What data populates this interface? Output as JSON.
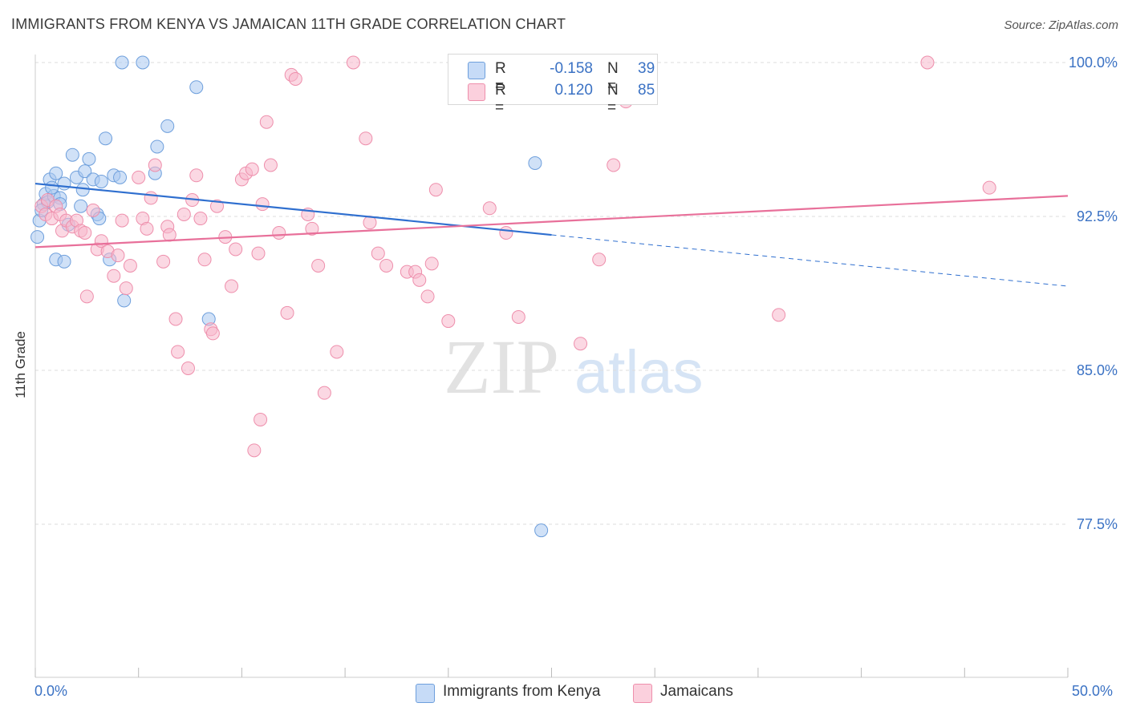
{
  "header": {
    "title": "IMMIGRANTS FROM KENYA VS JAMAICAN 11TH GRADE CORRELATION CHART",
    "source": "Source: ZipAtlas.com"
  },
  "watermark": {
    "zip": "ZIP",
    "atlas": "atlas"
  },
  "stats_legend": [
    {
      "r_label": "R =",
      "r_value": "-0.158",
      "n_label": "N =",
      "n_value": "39",
      "color": "#a9c8f0"
    },
    {
      "r_label": "R =",
      "r_value": "0.120",
      "n_label": "N =",
      "n_value": "85",
      "color": "#f7b8cc"
    }
  ],
  "bottom_legend": [
    {
      "label": "Immigrants from Kenya",
      "color": "#a9c8f0"
    },
    {
      "label": "Jamaicans",
      "color": "#f7b8cc"
    }
  ],
  "x_tick_labels": {
    "left": "0.0%",
    "right": "50.0%"
  },
  "chart_data": {
    "type": "scatter",
    "title": "IMMIGRANTS FROM KENYA VS JAMAICAN 11TH GRADE CORRELATION CHART",
    "xlabel": "",
    "ylabel": "11th Grade",
    "xlim": [
      0,
      50
    ],
    "ylim": [
      70.5,
      101.5
    ],
    "y_ticks": [
      {
        "value": 100.0,
        "label": "100.0%"
      },
      {
        "value": 92.5,
        "label": "92.5%"
      },
      {
        "value": 85.0,
        "label": "85.0%"
      },
      {
        "value": 77.5,
        "label": "77.5%"
      }
    ],
    "grid": true,
    "series": [
      {
        "name": "Immigrants from Kenya",
        "color": "#a9c8f0",
        "stroke": "#6e9fdc",
        "trend_color": "#2f6fcf",
        "trend": {
          "x0": 0,
          "y0": 94.1,
          "x1": 25,
          "y1": 91.6,
          "dash_to_x": 50,
          "dash_to_y": 89.1
        },
        "points": [
          [
            0.2,
            92.3
          ],
          [
            0.4,
            93.1
          ],
          [
            0.5,
            93.6
          ],
          [
            0.6,
            93.2
          ],
          [
            0.7,
            94.3
          ],
          [
            0.9,
            93.5
          ],
          [
            1.0,
            94.6
          ],
          [
            1.2,
            93.4
          ],
          [
            1.4,
            94.1
          ],
          [
            1.6,
            92.1
          ],
          [
            1.8,
            95.5
          ],
          [
            2.0,
            94.4
          ],
          [
            2.2,
            93.0
          ],
          [
            2.3,
            93.8
          ],
          [
            2.4,
            94.7
          ],
          [
            2.6,
            95.3
          ],
          [
            2.8,
            94.3
          ],
          [
            3.0,
            92.6
          ],
          [
            3.1,
            92.4
          ],
          [
            3.2,
            94.2
          ],
          [
            3.4,
            96.3
          ],
          [
            3.6,
            90.4
          ],
          [
            3.8,
            94.5
          ],
          [
            4.1,
            94.4
          ],
          [
            4.2,
            100.0
          ],
          [
            4.3,
            88.4
          ],
          [
            5.2,
            100.0
          ],
          [
            5.8,
            94.6
          ],
          [
            5.9,
            95.9
          ],
          [
            6.4,
            96.9
          ],
          [
            7.8,
            98.8
          ],
          [
            8.4,
            87.5
          ],
          [
            1.0,
            90.4
          ],
          [
            1.4,
            90.3
          ],
          [
            0.3,
            92.8
          ],
          [
            0.8,
            93.9
          ],
          [
            1.2,
            93.1
          ],
          [
            0.1,
            91.5
          ],
          [
            24.2,
            95.1
          ],
          [
            24.5,
            77.2
          ]
        ]
      },
      {
        "name": "Jamaicans",
        "color": "#f7b8cc",
        "stroke": "#ee8fac",
        "trend_color": "#e8709a",
        "trend": {
          "x0": 0,
          "y0": 91.0,
          "x1": 50,
          "y1": 93.5
        },
        "points": [
          [
            0.3,
            93.0
          ],
          [
            0.5,
            92.6
          ],
          [
            0.6,
            93.3
          ],
          [
            0.8,
            92.4
          ],
          [
            1.0,
            93.0
          ],
          [
            1.2,
            92.6
          ],
          [
            1.3,
            91.8
          ],
          [
            1.5,
            92.3
          ],
          [
            1.8,
            92.0
          ],
          [
            2.0,
            92.3
          ],
          [
            2.2,
            91.8
          ],
          [
            2.4,
            91.7
          ],
          [
            2.5,
            88.6
          ],
          [
            2.8,
            92.8
          ],
          [
            3.0,
            90.9
          ],
          [
            3.2,
            91.3
          ],
          [
            3.5,
            90.8
          ],
          [
            3.8,
            89.6
          ],
          [
            4.0,
            90.6
          ],
          [
            4.2,
            92.3
          ],
          [
            4.4,
            89.0
          ],
          [
            4.6,
            90.1
          ],
          [
            5.0,
            94.4
          ],
          [
            5.2,
            92.4
          ],
          [
            5.4,
            91.9
          ],
          [
            5.6,
            93.4
          ],
          [
            5.8,
            95.0
          ],
          [
            6.2,
            90.3
          ],
          [
            6.4,
            92.0
          ],
          [
            6.5,
            91.6
          ],
          [
            6.8,
            87.5
          ],
          [
            6.9,
            85.9
          ],
          [
            7.2,
            92.6
          ],
          [
            7.4,
            85.1
          ],
          [
            7.6,
            93.3
          ],
          [
            7.8,
            94.5
          ],
          [
            8.0,
            92.4
          ],
          [
            8.2,
            90.4
          ],
          [
            8.5,
            87.0
          ],
          [
            8.6,
            86.8
          ],
          [
            8.8,
            93.0
          ],
          [
            9.2,
            91.5
          ],
          [
            9.5,
            89.1
          ],
          [
            9.7,
            90.9
          ],
          [
            10.0,
            94.3
          ],
          [
            10.2,
            94.6
          ],
          [
            10.5,
            94.8
          ],
          [
            10.8,
            90.7
          ],
          [
            11.0,
            93.1
          ],
          [
            11.2,
            97.1
          ],
          [
            11.4,
            95.0
          ],
          [
            11.8,
            91.7
          ],
          [
            12.2,
            87.8
          ],
          [
            12.4,
            99.4
          ],
          [
            12.6,
            99.2
          ],
          [
            13.2,
            92.6
          ],
          [
            13.4,
            91.9
          ],
          [
            13.7,
            90.1
          ],
          [
            14.6,
            85.9
          ],
          [
            15.4,
            100.0
          ],
          [
            16.0,
            96.3
          ],
          [
            16.2,
            92.2
          ],
          [
            16.6,
            90.7
          ],
          [
            17.0,
            90.1
          ],
          [
            18.0,
            89.8
          ],
          [
            18.4,
            89.8
          ],
          [
            18.6,
            89.4
          ],
          [
            19.0,
            88.6
          ],
          [
            19.2,
            90.2
          ],
          [
            19.4,
            93.8
          ],
          [
            20.0,
            87.4
          ],
          [
            22.0,
            92.9
          ],
          [
            22.8,
            91.7
          ],
          [
            23.4,
            87.6
          ],
          [
            25.0,
            100.0
          ],
          [
            26.4,
            86.3
          ],
          [
            27.3,
            90.4
          ],
          [
            28.0,
            95.0
          ],
          [
            28.6,
            98.1
          ],
          [
            36.0,
            87.7
          ],
          [
            43.2,
            100.0
          ],
          [
            46.2,
            93.9
          ],
          [
            14.0,
            83.9
          ],
          [
            10.9,
            82.6
          ],
          [
            10.6,
            81.1
          ]
        ]
      }
    ]
  }
}
